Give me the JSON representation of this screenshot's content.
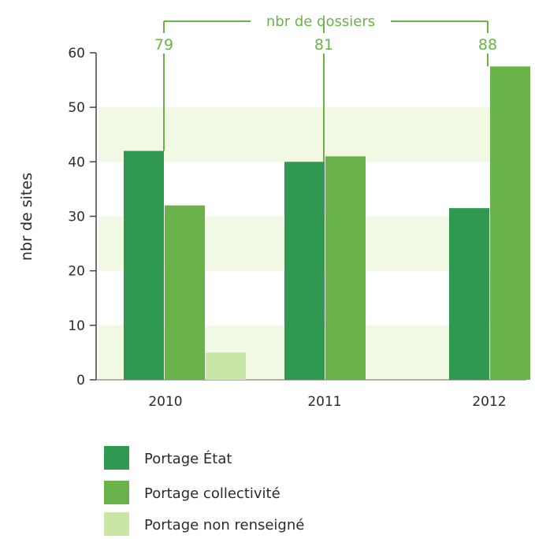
{
  "chart_data": {
    "type": "bar",
    "title": "",
    "xlabel": "",
    "ylabel": "nbr de sites",
    "ylim": [
      0,
      60
    ],
    "yticks": [
      0,
      10,
      20,
      30,
      40,
      50,
      60
    ],
    "categories": [
      "2010",
      "2011",
      "2012"
    ],
    "series": [
      {
        "name": "Portage État",
        "color": "#2f9a4f",
        "values": [
          42,
          40,
          31.5
        ]
      },
      {
        "name": "Portage collectivité",
        "color": "#6ab34a",
        "values": [
          32,
          41,
          57.5
        ]
      },
      {
        "name": "Portage non renseigné",
        "color": "#c8e6a6",
        "values": [
          5,
          0,
          0
        ]
      }
    ],
    "dossiers": {
      "label": "nbr de dossiers",
      "values": [
        "79",
        "81",
        "88"
      ]
    },
    "grid": false,
    "background_bands": true,
    "legend": "bottom-left"
  }
}
